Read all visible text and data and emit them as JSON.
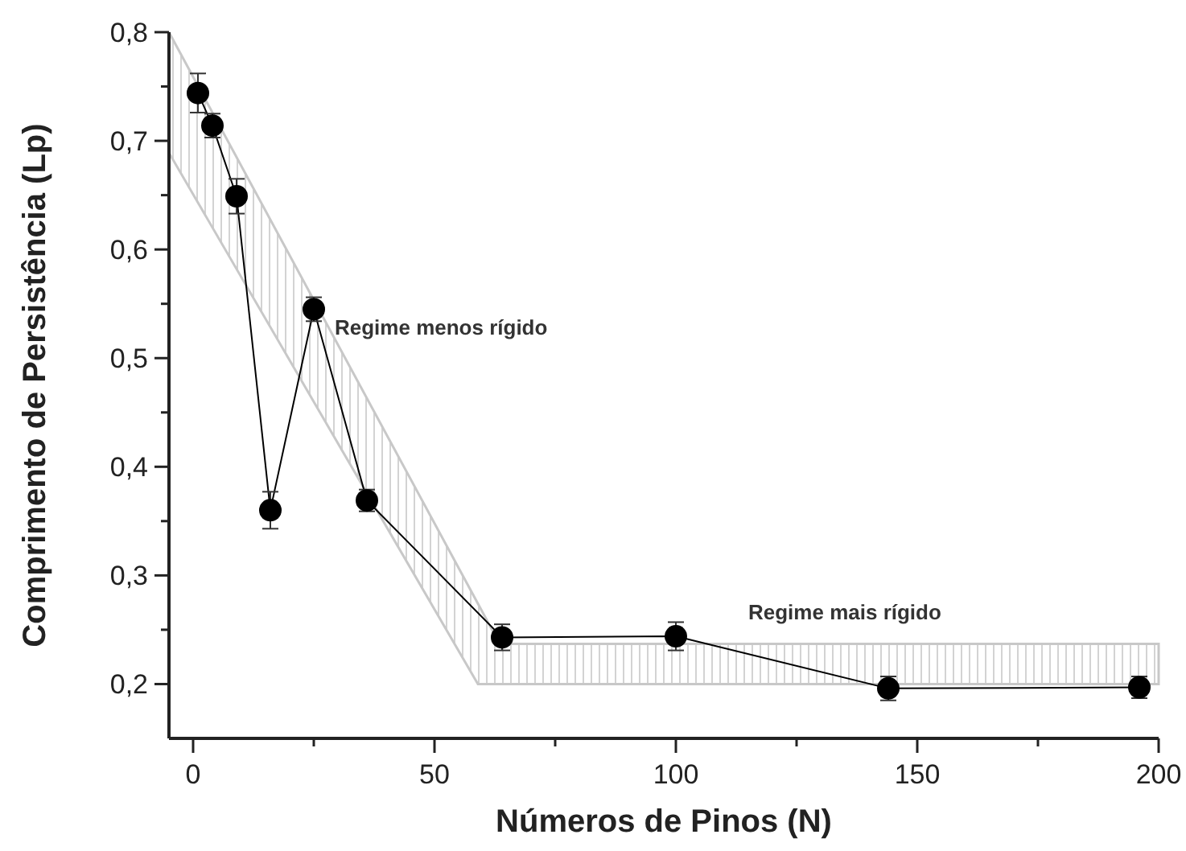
{
  "chart_data": {
    "type": "line",
    "xlabel": "Números de Pinos (N)",
    "ylabel": "Comprimento de Persistência (Lp)",
    "xlim": [
      -5,
      200
    ],
    "ylim": [
      0.15,
      0.8
    ],
    "xticks": [
      0,
      {
        "value": 25,
        "label": null
      },
      50,
      {
        "value": 75,
        "label": null
      },
      100,
      {
        "value": 125,
        "label": null
      },
      150,
      {
        "value": 175,
        "label": null
      },
      200
    ],
    "yticks": [
      {
        "value": 0.2,
        "label": "0,2"
      },
      {
        "value": 0.25,
        "label": null
      },
      {
        "value": 0.3,
        "label": "0,3"
      },
      {
        "value": 0.35,
        "label": null
      },
      {
        "value": 0.4,
        "label": "0,4"
      },
      {
        "value": 0.45,
        "label": null
      },
      {
        "value": 0.5,
        "label": "0,5"
      },
      {
        "value": 0.55,
        "label": null
      },
      {
        "value": 0.6,
        "label": "0,6"
      },
      {
        "value": 0.65,
        "label": null
      },
      {
        "value": 0.7,
        "label": "0,7"
      },
      {
        "value": 0.75,
        "label": null
      },
      {
        "value": 0.8,
        "label": "0,8"
      }
    ],
    "line_style": "solid",
    "annotations": [
      "Regime menos rígido",
      "Regime mais rígido"
    ],
    "series": [
      {
        "type": "line",
        "color": "#c8c8c8",
        "marker": "none",
        "x": [
          -5,
          59,
          63.5,
          200
        ],
        "values": [
          null,
          null,
          null,
          null
        ],
        "lower": [
          0.689,
          0.2,
          0.2,
          0.2
        ],
        "upper": [
          0.8,
          0.274,
          0.237,
          0.237
        ]
      },
      {
        "color": "#000000",
        "marker": "circle",
        "x": [
          1,
          4,
          9,
          16,
          25,
          36,
          64,
          100,
          144,
          196
        ],
        "values": [
          0.744,
          0.714,
          0.649,
          0.36,
          0.545,
          0.369,
          0.243,
          0.244,
          0.196,
          0.197
        ],
        "errors": [
          0.018,
          0.011,
          0.016,
          0.017,
          0.011,
          0.01,
          0.012,
          0.013,
          0.011,
          0.01
        ]
      }
    ]
  }
}
